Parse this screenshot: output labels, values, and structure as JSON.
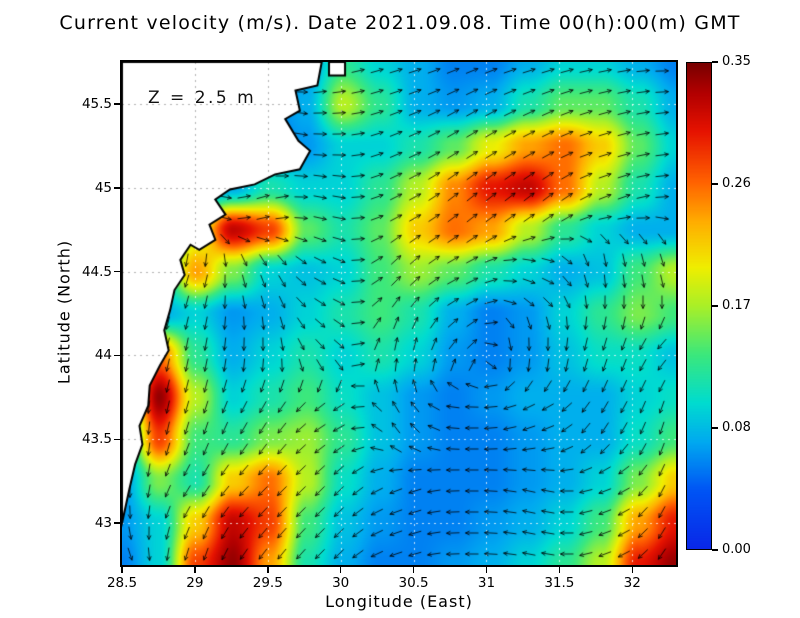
{
  "page": {
    "title": "Current velocity (m/s). Date 2021.09.08. Time 00(h):00(m) GMT",
    "annotation": "Z = 2.5 m"
  },
  "axes": {
    "x_label": "Longitude (East)",
    "y_label": "Latitude (North)",
    "x_ticks": [
      "28.5",
      "29",
      "29.5",
      "30",
      "30.5",
      "31",
      "31.5",
      "32"
    ],
    "y_ticks": [
      "45.5",
      "45",
      "44.5",
      "44",
      "43.5",
      "43"
    ]
  },
  "colorbar": {
    "labels": [
      "0.35",
      "0.26",
      "0.17",
      "0.08",
      "0.00"
    ]
  },
  "chart_data": {
    "type": "heatmap",
    "title": "Current velocity (m/s). Date 2021.09.08. Time 00(h):00(m) GMT",
    "subtitle": "Z = 2.5 m",
    "xlabel": "Longitude (East)",
    "ylabel": "Latitude (North)",
    "units": "m/s",
    "grid": "dotted",
    "x_range": [
      28.5,
      32.3
    ],
    "y_range": [
      42.75,
      45.75
    ],
    "x_ticks": [
      28.5,
      29,
      29.5,
      30,
      30.5,
      31,
      31.5,
      32
    ],
    "y_ticks": [
      45.5,
      45,
      44.5,
      44,
      43.5,
      43
    ],
    "colorbar": {
      "min": 0,
      "max": 0.35,
      "tick_values": [
        0.35,
        0.26,
        0.17,
        0.08,
        0.0
      ]
    },
    "colormap_stops": [
      [
        0.0,
        "#0a28e8"
      ],
      [
        0.12,
        "#0055f5"
      ],
      [
        0.22,
        "#00aaf0"
      ],
      [
        0.3,
        "#00dcd0"
      ],
      [
        0.4,
        "#3ce87c"
      ],
      [
        0.5,
        "#aaf028"
      ],
      [
        0.58,
        "#f0ee00"
      ],
      [
        0.67,
        "#ffb000"
      ],
      [
        0.76,
        "#ff5f00"
      ],
      [
        0.86,
        "#e61300"
      ],
      [
        0.94,
        "#b20000"
      ],
      [
        1.0,
        "#7a0000"
      ]
    ],
    "magnitude_grid": [
      [
        0.05,
        0.05,
        0.05,
        0.05,
        0.05,
        0.07,
        0.13,
        0.1,
        0.08,
        0.06,
        0.06,
        0.08,
        0.1,
        0.1,
        0.08,
        0.06
      ],
      [
        0.05,
        0.05,
        0.05,
        0.05,
        0.06,
        0.08,
        0.18,
        0.13,
        0.08,
        0.07,
        0.08,
        0.12,
        0.15,
        0.15,
        0.12,
        0.08
      ],
      [
        0.05,
        0.05,
        0.05,
        0.06,
        0.06,
        0.07,
        0.1,
        0.1,
        0.12,
        0.15,
        0.2,
        0.24,
        0.26,
        0.22,
        0.15,
        0.1
      ],
      [
        0.05,
        0.05,
        0.06,
        0.08,
        0.12,
        0.1,
        0.1,
        0.13,
        0.18,
        0.25,
        0.3,
        0.32,
        0.26,
        0.18,
        0.12,
        0.08
      ],
      [
        0.05,
        0.08,
        0.18,
        0.32,
        0.28,
        0.15,
        0.12,
        0.15,
        0.22,
        0.26,
        0.24,
        0.18,
        0.13,
        0.1,
        0.08,
        0.08
      ],
      [
        0.05,
        0.1,
        0.24,
        0.16,
        0.1,
        0.09,
        0.1,
        0.14,
        0.17,
        0.15,
        0.12,
        0.1,
        0.08,
        0.09,
        0.14,
        0.18
      ],
      [
        0.06,
        0.08,
        0.1,
        0.07,
        0.08,
        0.1,
        0.12,
        0.14,
        0.12,
        0.08,
        0.06,
        0.07,
        0.1,
        0.13,
        0.16,
        0.14
      ],
      [
        0.08,
        0.26,
        0.13,
        0.08,
        0.1,
        0.12,
        0.1,
        0.12,
        0.1,
        0.07,
        0.06,
        0.07,
        0.09,
        0.11,
        0.11,
        0.09
      ],
      [
        0.1,
        0.34,
        0.18,
        0.1,
        0.12,
        0.14,
        0.11,
        0.09,
        0.07,
        0.06,
        0.07,
        0.08,
        0.08,
        0.08,
        0.1,
        0.11
      ],
      [
        0.08,
        0.28,
        0.14,
        0.13,
        0.16,
        0.17,
        0.13,
        0.09,
        0.07,
        0.06,
        0.06,
        0.07,
        0.08,
        0.08,
        0.11,
        0.14
      ],
      [
        0.07,
        0.16,
        0.12,
        0.22,
        0.26,
        0.18,
        0.11,
        0.08,
        0.06,
        0.06,
        0.06,
        0.07,
        0.08,
        0.1,
        0.16,
        0.22
      ],
      [
        0.07,
        0.1,
        0.22,
        0.32,
        0.28,
        0.14,
        0.09,
        0.07,
        0.06,
        0.06,
        0.07,
        0.08,
        0.1,
        0.14,
        0.24,
        0.3
      ],
      [
        0.06,
        0.1,
        0.28,
        0.34,
        0.24,
        0.12,
        0.08,
        0.06,
        0.06,
        0.07,
        0.08,
        0.1,
        0.13,
        0.18,
        0.3,
        0.34
      ]
    ],
    "flow_u": [
      [
        0.2,
        0.5,
        1.0,
        1.0,
        1.0,
        1.0,
        1.0,
        1.0,
        0.9
      ],
      [
        0.1,
        0.3,
        0.8,
        1.0,
        1.0,
        1.0,
        1.0,
        1.0,
        0.9
      ],
      [
        -0.1,
        0.6,
        1.0,
        0.9,
        1.0,
        1.0,
        0.9,
        0.5,
        0.3
      ],
      [
        -0.2,
        -0.3,
        0.3,
        0.8,
        0.8,
        1.0,
        0.8,
        0.1,
        0.2
      ],
      [
        -0.3,
        -0.2,
        0.0,
        0.5,
        0.2,
        0.3,
        0.0,
        -0.3,
        -0.5
      ],
      [
        0.0,
        -0.3,
        -0.5,
        -0.8,
        -0.5,
        -1.0,
        -0.8,
        -0.5,
        -0.3
      ],
      [
        0.0,
        -0.5,
        -0.7,
        -0.7,
        -0.8,
        -1.0,
        -0.9,
        -0.8,
        -0.4
      ],
      [
        0.3,
        -0.3,
        -0.6,
        -0.7,
        -0.9,
        -1.0,
        -1.0,
        -0.8,
        -0.5
      ]
    ],
    "flow_v": [
      [
        -1.0,
        -0.8,
        -0.2,
        0.2,
        0.3,
        0.4,
        0.3,
        0.2,
        0.0
      ],
      [
        -1.0,
        -0.9,
        -0.4,
        0.0,
        0.4,
        0.6,
        0.5,
        0.3,
        0.1
      ],
      [
        -1.0,
        -0.5,
        0.3,
        -0.2,
        0.5,
        0.8,
        0.7,
        0.2,
        0.0
      ],
      [
        -1.0,
        -1.0,
        -0.8,
        -0.4,
        0.8,
        0.5,
        -0.3,
        -1.0,
        -0.8
      ],
      [
        -1.0,
        -1.0,
        -0.8,
        -0.5,
        1.0,
        0.3,
        -1.0,
        -1.0,
        -0.5
      ],
      [
        -1.0,
        -1.0,
        -0.8,
        -0.5,
        0.7,
        0.0,
        -0.3,
        -0.8,
        -1.0
      ],
      [
        -1.0,
        -0.8,
        -0.7,
        -0.7,
        -0.3,
        0.0,
        0.2,
        -0.3,
        -0.9
      ],
      [
        -0.8,
        -1.0,
        -0.8,
        -0.7,
        -0.3,
        0.0,
        0.2,
        -0.3,
        -0.8
      ]
    ],
    "coastline": [
      [
        29.87,
        45.75
      ],
      [
        29.84,
        45.61
      ],
      [
        29.69,
        45.58
      ],
      [
        29.72,
        45.46
      ],
      [
        29.62,
        45.41
      ],
      [
        29.71,
        45.28
      ],
      [
        29.79,
        45.22
      ],
      [
        29.72,
        45.11
      ],
      [
        29.55,
        45.08
      ],
      [
        29.41,
        45.02
      ],
      [
        29.24,
        44.99
      ],
      [
        29.14,
        44.93
      ],
      [
        29.21,
        44.84
      ],
      [
        29.1,
        44.78
      ],
      [
        29.14,
        44.69
      ],
      [
        29.03,
        44.63
      ],
      [
        28.97,
        44.66
      ],
      [
        28.9,
        44.57
      ],
      [
        28.93,
        44.48
      ],
      [
        28.86,
        44.39
      ],
      [
        28.83,
        44.27
      ],
      [
        28.79,
        44.15
      ],
      [
        28.82,
        44.03
      ],
      [
        28.76,
        43.94
      ],
      [
        28.69,
        43.82
      ],
      [
        28.68,
        43.7
      ],
      [
        28.62,
        43.58
      ],
      [
        28.64,
        43.47
      ],
      [
        28.59,
        43.35
      ],
      [
        28.55,
        43.2
      ],
      [
        28.52,
        43.08
      ],
      [
        28.5,
        43.0
      ]
    ],
    "islands": [
      [
        [
          29.92,
          45.75
        ],
        [
          30.03,
          45.75
        ],
        [
          30.03,
          45.67
        ],
        [
          29.92,
          45.67
        ]
      ]
    ]
  }
}
